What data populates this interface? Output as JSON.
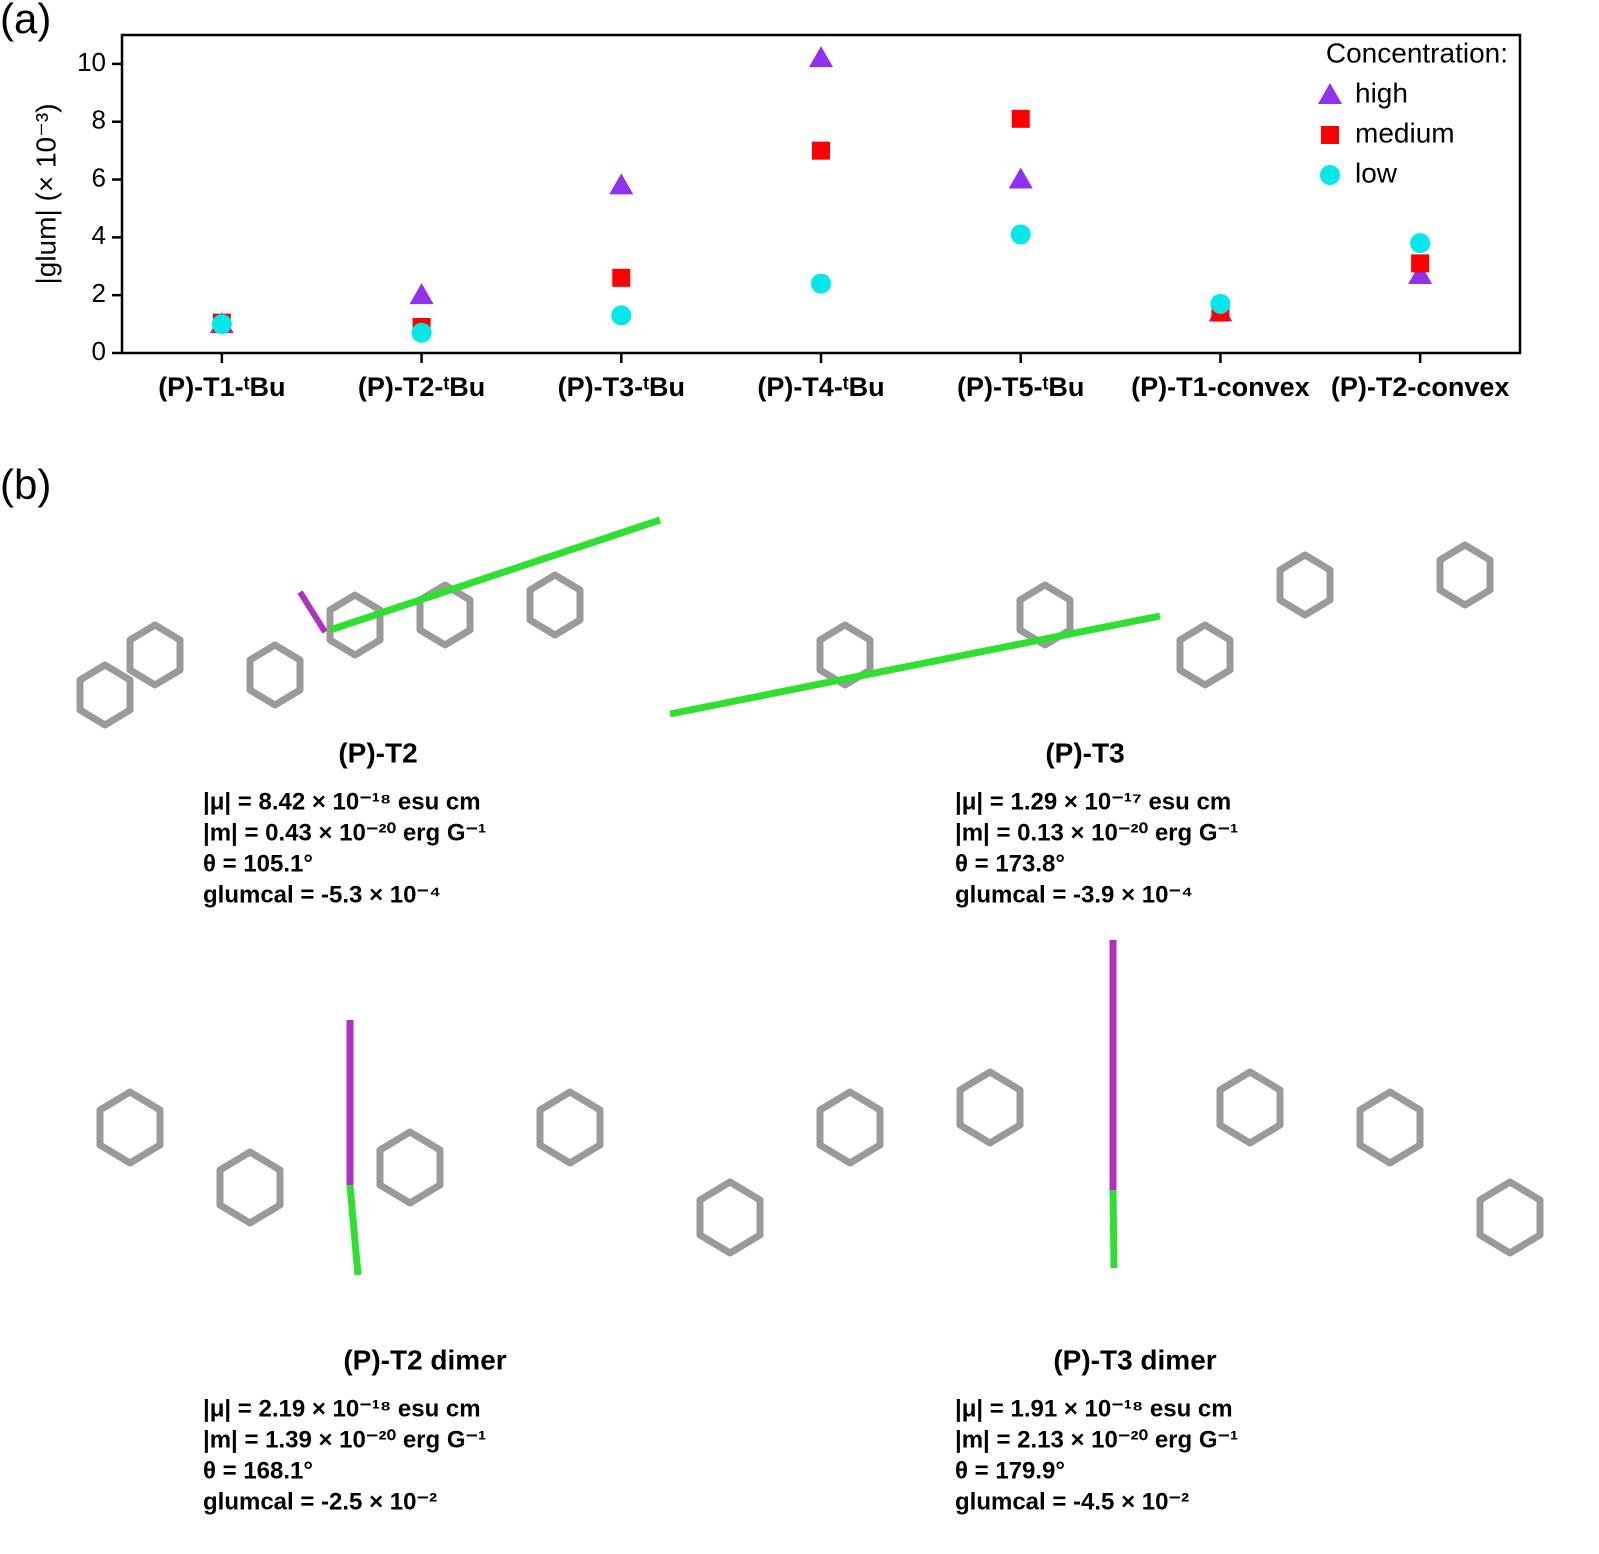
{
  "panel_labels": [
    "(a)",
    "(b)"
  ],
  "chart_data": {
    "type": "scatter",
    "ylabel": "|glum| (× 10⁻³)",
    "categories": [
      "(P)-T1-ᵗBu",
      "(P)-T2-ᵗBu",
      "(P)-T3-ᵗBu",
      "(P)-T4-ᵗBu",
      "(P)-T5-ᵗBu",
      "(P)-T1-convex",
      "(P)-T2-convex"
    ],
    "legend_title": "Concentration:",
    "legend": "upper right",
    "series": [
      {
        "name": "high",
        "color": "#9030f0",
        "marker": "triangle",
        "values": [
          1.0,
          2.0,
          5.8,
          10.2,
          6.0,
          1.4,
          2.7
        ]
      },
      {
        "name": "medium",
        "color": "#ff0000",
        "marker": "square",
        "values": [
          1.05,
          0.9,
          2.6,
          7.0,
          8.1,
          1.4,
          3.1
        ]
      },
      {
        "name": "low",
        "color": "#00e8e8",
        "marker": "circle",
        "values": [
          1.0,
          0.7,
          1.3,
          2.4,
          4.1,
          1.7,
          3.8
        ]
      }
    ],
    "ylim": [
      0,
      11
    ],
    "yticks": [
      0,
      2,
      4,
      6,
      8,
      10
    ]
  },
  "molecules": [
    {
      "name": "(P)-T2",
      "lines": [
        "|μ| = 8.42 × 10⁻¹⁸ esu cm",
        "|m| = 0.43 × 10⁻²⁰ erg G⁻¹",
        "θ = 105.1°",
        "glumcal = -5.3 × 10⁻⁴"
      ]
    },
    {
      "name": "(P)-T3",
      "lines": [
        "|μ| = 1.29 × 10⁻¹⁷ esu cm",
        "|m| = 0.13 × 10⁻²⁰ erg G⁻¹",
        "θ = 173.8°",
        "glumcal = -3.9 × 10⁻⁴"
      ]
    },
    {
      "name": "(P)-T2 dimer",
      "lines": [
        "|μ| = 2.19 × 10⁻¹⁸ esu cm",
        "|m| = 1.39 × 10⁻²⁰ erg G⁻¹",
        "θ = 168.1°",
        "glumcal = -2.5 × 10⁻²"
      ]
    },
    {
      "name": "(P)-T3 dimer",
      "lines": [
        "|μ| = 1.91 × 10⁻¹⁸ esu cm",
        "|m| = 2.13 × 10⁻²⁰ erg G⁻¹",
        "θ = 179.9°",
        "glumcal = -4.5 × 10⁻²"
      ]
    }
  ]
}
